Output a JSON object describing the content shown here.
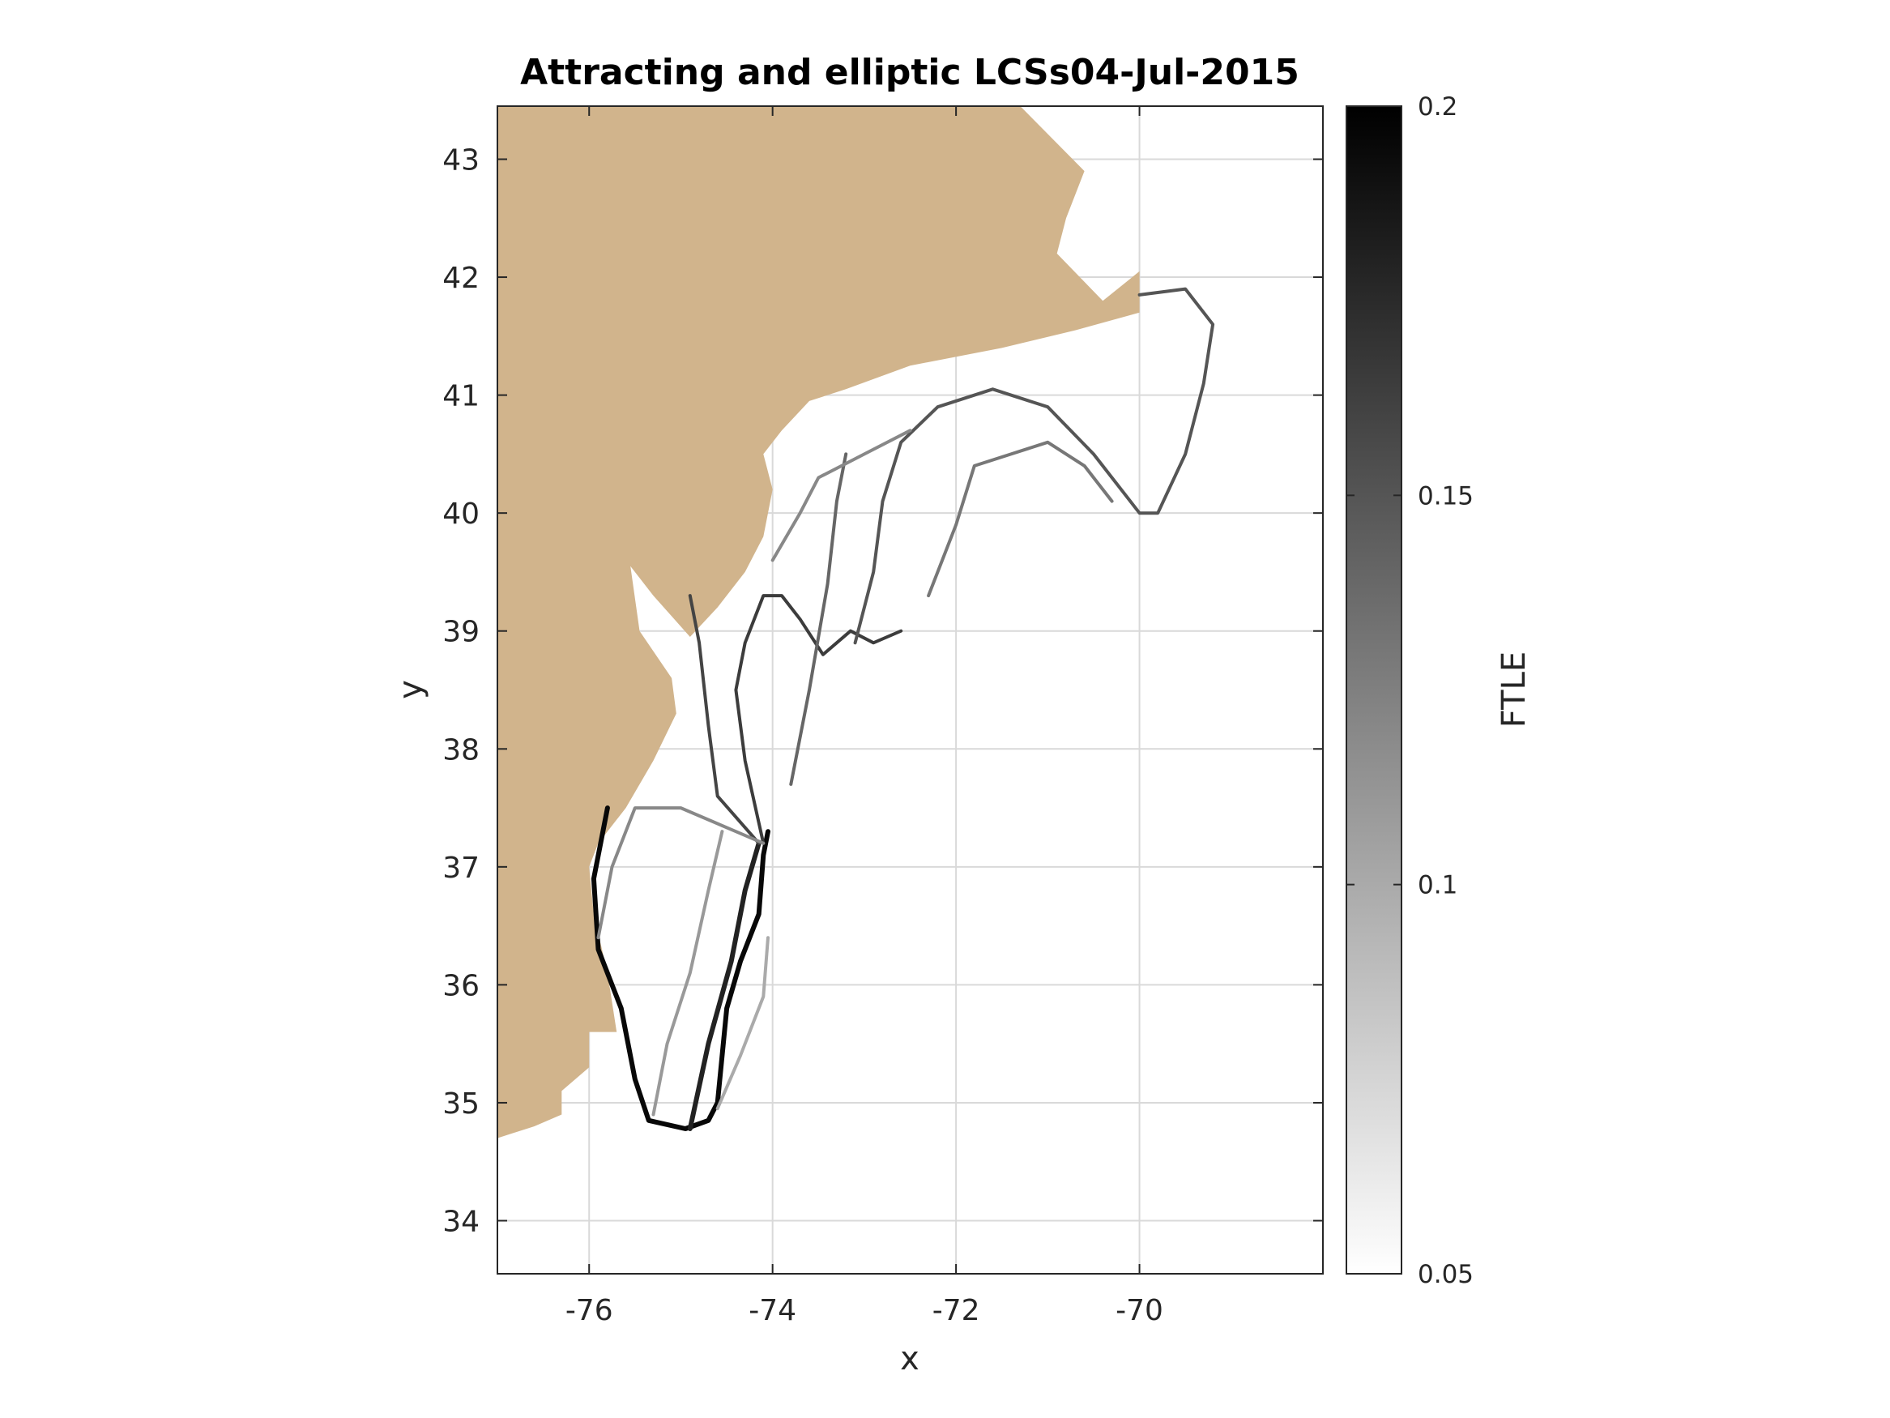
{
  "chart_data": {
    "type": "heatmap",
    "title": "Attracting and elliptic LCSs04-Jul-2015",
    "xlabel": "x",
    "ylabel": "y",
    "xlim": [
      -77.0,
      -68.0
    ],
    "ylim": [
      33.55,
      43.45
    ],
    "xticks": [
      -76,
      -74,
      -72,
      -70
    ],
    "xtick_labels": [
      "-76",
      "-74",
      "-72",
      "-70"
    ],
    "yticks": [
      34,
      35,
      36,
      37,
      38,
      39,
      40,
      41,
      42,
      43
    ],
    "ytick_labels": [
      "34",
      "35",
      "36",
      "37",
      "38",
      "39",
      "40",
      "41",
      "42",
      "43"
    ],
    "grid": true,
    "colormap": "gray (white to black)",
    "colorbar": {
      "label": "FTLE",
      "range": [
        0.05,
        0.2
      ],
      "ticks": [
        0.05,
        0.1,
        0.15,
        0.2
      ],
      "tick_labels": [
        "0.05",
        "0.1",
        "0.15",
        "0.2"
      ]
    },
    "land_color": "#d1b48c",
    "land_polygon": [
      [
        -77.0,
        43.45
      ],
      [
        -71.3,
        43.45
      ],
      [
        -70.6,
        42.9
      ],
      [
        -70.8,
        42.5
      ],
      [
        -70.9,
        42.2
      ],
      [
        -70.4,
        41.8
      ],
      [
        -70.0,
        42.05
      ],
      [
        -70.0,
        41.7
      ],
      [
        -70.7,
        41.55
      ],
      [
        -71.5,
        41.4
      ],
      [
        -72.5,
        41.25
      ],
      [
        -73.2,
        41.05
      ],
      [
        -73.6,
        40.95
      ],
      [
        -73.9,
        40.7
      ],
      [
        -74.1,
        40.5
      ],
      [
        -74.0,
        40.2
      ],
      [
        -74.1,
        39.8
      ],
      [
        -74.3,
        39.5
      ],
      [
        -74.6,
        39.2
      ],
      [
        -74.9,
        38.95
      ],
      [
        -75.3,
        39.3
      ],
      [
        -75.55,
        39.55
      ],
      [
        -75.45,
        39.0
      ],
      [
        -75.1,
        38.6
      ],
      [
        -75.05,
        38.3
      ],
      [
        -75.3,
        37.9
      ],
      [
        -75.6,
        37.5
      ],
      [
        -75.9,
        37.2
      ],
      [
        -76.0,
        37.0
      ],
      [
        -75.95,
        36.6
      ],
      [
        -75.8,
        36.1
      ],
      [
        -75.7,
        35.6
      ],
      [
        -76.0,
        35.6
      ],
      [
        -76.0,
        35.3
      ],
      [
        -76.3,
        35.1
      ],
      [
        -76.3,
        34.9
      ],
      [
        -76.6,
        34.8
      ],
      [
        -77.0,
        34.7
      ]
    ],
    "series": [
      {
        "values": [
          [
            -75.8,
            37.5
          ],
          [
            -75.95,
            36.9
          ],
          [
            -75.9,
            36.3
          ],
          [
            -75.65,
            35.8
          ],
          [
            -75.5,
            35.2
          ],
          [
            -75.35,
            34.85
          ],
          [
            -74.95,
            34.78
          ],
          [
            -74.7,
            34.85
          ],
          [
            -74.6,
            35.0
          ],
          [
            -74.55,
            35.4
          ],
          [
            -74.5,
            35.8
          ],
          [
            -74.35,
            36.2
          ],
          [
            -74.15,
            36.6
          ],
          [
            -74.1,
            37.1
          ],
          [
            -74.05,
            37.3
          ]
        ],
        "ftle": 0.195
      },
      {
        "values": [
          [
            -74.9,
            34.78
          ],
          [
            -74.7,
            35.5
          ],
          [
            -74.45,
            36.2
          ],
          [
            -74.3,
            36.8
          ],
          [
            -74.15,
            37.2
          ]
        ],
        "ftle": 0.18
      },
      {
        "values": [
          [
            -74.1,
            37.2
          ],
          [
            -74.3,
            37.9
          ],
          [
            -74.4,
            38.5
          ],
          [
            -74.3,
            38.9
          ],
          [
            -74.1,
            39.3
          ],
          [
            -73.9,
            39.3
          ],
          [
            -73.7,
            39.1
          ],
          [
            -73.45,
            38.8
          ],
          [
            -73.15,
            39.0
          ],
          [
            -72.9,
            38.9
          ],
          [
            -72.6,
            39.0
          ]
        ],
        "ftle": 0.165
      },
      {
        "values": [
          [
            -74.15,
            37.2
          ],
          [
            -74.6,
            37.6
          ],
          [
            -74.7,
            38.2
          ],
          [
            -74.8,
            38.9
          ],
          [
            -74.9,
            39.3
          ]
        ],
        "ftle": 0.16
      },
      {
        "values": [
          [
            -75.9,
            36.4
          ],
          [
            -75.75,
            37.0
          ],
          [
            -75.5,
            37.5
          ],
          [
            -75.0,
            37.5
          ],
          [
            -74.4,
            37.3
          ],
          [
            -74.1,
            37.2
          ]
        ],
        "ftle": 0.12
      },
      {
        "values": [
          [
            -75.3,
            34.9
          ],
          [
            -75.15,
            35.5
          ],
          [
            -74.9,
            36.1
          ],
          [
            -74.7,
            36.8
          ],
          [
            -74.55,
            37.3
          ]
        ],
        "ftle": 0.11
      },
      {
        "values": [
          [
            -74.6,
            34.95
          ],
          [
            -74.35,
            35.4
          ],
          [
            -74.1,
            35.9
          ],
          [
            -74.05,
            36.4
          ]
        ],
        "ftle": 0.1
      },
      {
        "values": [
          [
            -73.8,
            37.7
          ],
          [
            -73.6,
            38.5
          ],
          [
            -73.4,
            39.4
          ],
          [
            -73.3,
            40.1
          ],
          [
            -73.2,
            40.5
          ]
        ],
        "ftle": 0.14
      },
      {
        "values": [
          [
            -73.1,
            38.9
          ],
          [
            -72.9,
            39.5
          ],
          [
            -72.8,
            40.1
          ],
          [
            -72.6,
            40.6
          ],
          [
            -72.2,
            40.9
          ],
          [
            -71.6,
            41.05
          ],
          [
            -71.0,
            40.9
          ],
          [
            -70.5,
            40.5
          ],
          [
            -70.0,
            40.0
          ],
          [
            -69.8,
            40.0
          ],
          [
            -69.5,
            40.5
          ],
          [
            -69.3,
            41.1
          ],
          [
            -69.2,
            41.6
          ],
          [
            -69.5,
            41.9
          ],
          [
            -70.0,
            41.85
          ]
        ],
        "ftle": 0.15
      },
      {
        "values": [
          [
            -72.3,
            39.3
          ],
          [
            -72.0,
            39.9
          ],
          [
            -71.8,
            40.4
          ],
          [
            -71.4,
            40.5
          ],
          [
            -71.0,
            40.6
          ],
          [
            -70.6,
            40.4
          ],
          [
            -70.3,
            40.1
          ]
        ],
        "ftle": 0.13
      },
      {
        "values": [
          [
            -74.0,
            39.6
          ],
          [
            -73.7,
            40.0
          ],
          [
            -73.5,
            40.3
          ],
          [
            -73.0,
            40.5
          ],
          [
            -72.5,
            40.7
          ]
        ],
        "ftle": 0.12
      }
    ]
  }
}
